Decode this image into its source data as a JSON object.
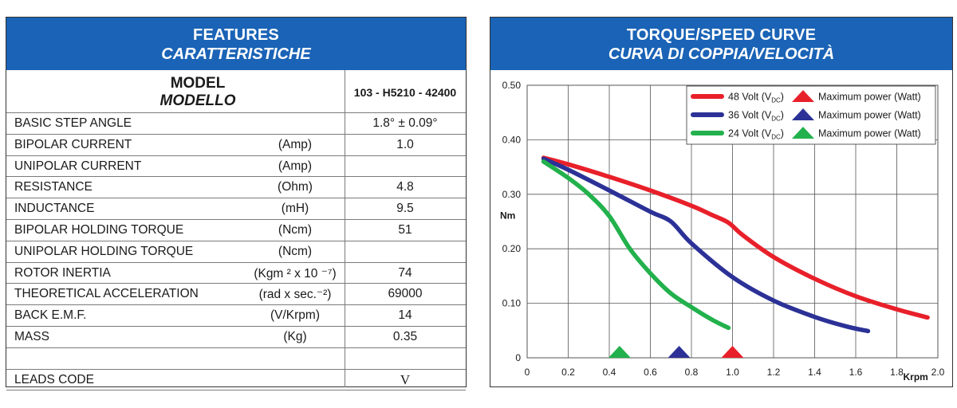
{
  "features": {
    "title": "FEATURES",
    "subtitle": "CARATTERISTICHE",
    "model_label": "MODEL",
    "model_label_it": "MODELLO",
    "model_value": "103 - H5210 - 42400",
    "rows": [
      {
        "label": "BASIC STEP ANGLE",
        "unit": "",
        "value": "1.8° ± 0.09°"
      },
      {
        "label": "BIPOLAR CURRENT",
        "unit": "(Amp)",
        "value": "1.0"
      },
      {
        "label": "UNIPOLAR CURRENT",
        "unit": "(Amp)",
        "value": ""
      },
      {
        "label": "RESISTANCE",
        "unit": "(Ohm)",
        "value": "4.8"
      },
      {
        "label": "INDUCTANCE",
        "unit": "(mH)",
        "value": "9.5"
      },
      {
        "label": "BIPOLAR HOLDING TORQUE",
        "unit": "(Ncm)",
        "value": "51"
      },
      {
        "label": "UNIPOLAR HOLDING TORQUE",
        "unit": "(Ncm)",
        "value": ""
      },
      {
        "label": "ROTOR INERTIA",
        "unit": "(Kgm ² x 10 ⁻⁷)",
        "value": "74"
      },
      {
        "label": "THEORETICAL ACCELERATION",
        "unit": "(rad x sec.⁻²)",
        "value": "69000"
      },
      {
        "label": "BACK E.M.F.",
        "unit": "(V/Krpm)",
        "value": "14"
      },
      {
        "label": "MASS",
        "unit": "(Kg)",
        "value": "0.35"
      },
      {
        "label": "",
        "unit": "",
        "value": ""
      },
      {
        "label": "LEADS CODE",
        "unit": "",
        "value": "V"
      }
    ]
  },
  "curve_panel": {
    "title": "TORQUE/SPEED CURVE",
    "subtitle": "CURVA DI COPPIA/VELOCITÀ"
  },
  "chart_data": {
    "type": "line",
    "xlabel": "Krpm",
    "ylabel": "Nm",
    "xlim": [
      0,
      2.0
    ],
    "ylim": [
      0,
      0.5
    ],
    "xticks": [
      "0",
      "0.2",
      "0.4",
      "0.6",
      "0.8",
      "1.0",
      "1.2",
      "1.4",
      "1.6",
      "1.8",
      "2.0"
    ],
    "yticks": [
      "0",
      "0.10",
      "0.20",
      "0.30",
      "0.40",
      "0.50"
    ],
    "grid": true,
    "legend_position": "top-right",
    "series": [
      {
        "name": "48 Volt (VDC)",
        "legend_main": "48 Volt (V",
        "legend_sub": "DC",
        "legend_close": ")",
        "marker_label": "Maximum power (Watt)",
        "color": "#e8202a",
        "max_power_x": 1.0,
        "x": [
          0.08,
          0.2,
          0.4,
          0.6,
          0.8,
          0.9,
          0.98,
          1.05,
          1.2,
          1.4,
          1.6,
          1.8,
          1.95
        ],
        "y": [
          0.367,
          0.355,
          0.332,
          0.307,
          0.279,
          0.262,
          0.248,
          0.225,
          0.185,
          0.145,
          0.113,
          0.089,
          0.074
        ]
      },
      {
        "name": "36 Volt (VDC)",
        "legend_main": "36 Volt (V",
        "legend_sub": "DC",
        "legend_close": ")",
        "marker_label": "Maximum power (Watt)",
        "color": "#2b3196",
        "max_power_x": 0.74,
        "x": [
          0.08,
          0.2,
          0.4,
          0.6,
          0.7,
          0.8,
          1.0,
          1.2,
          1.4,
          1.55,
          1.66
        ],
        "y": [
          0.365,
          0.345,
          0.307,
          0.268,
          0.25,
          0.21,
          0.148,
          0.105,
          0.075,
          0.058,
          0.049
        ]
      },
      {
        "name": "24 Volt (VDC)",
        "legend_main": "24 Volt (V",
        "legend_sub": "DC",
        "legend_close": ")",
        "marker_label": "Maximum power (Watt)",
        "color": "#22b14c",
        "max_power_x": 0.45,
        "x": [
          0.08,
          0.2,
          0.3,
          0.4,
          0.5,
          0.6,
          0.7,
          0.8,
          0.9,
          0.98
        ],
        "y": [
          0.36,
          0.33,
          0.3,
          0.26,
          0.2,
          0.155,
          0.118,
          0.093,
          0.07,
          0.055
        ]
      }
    ]
  }
}
